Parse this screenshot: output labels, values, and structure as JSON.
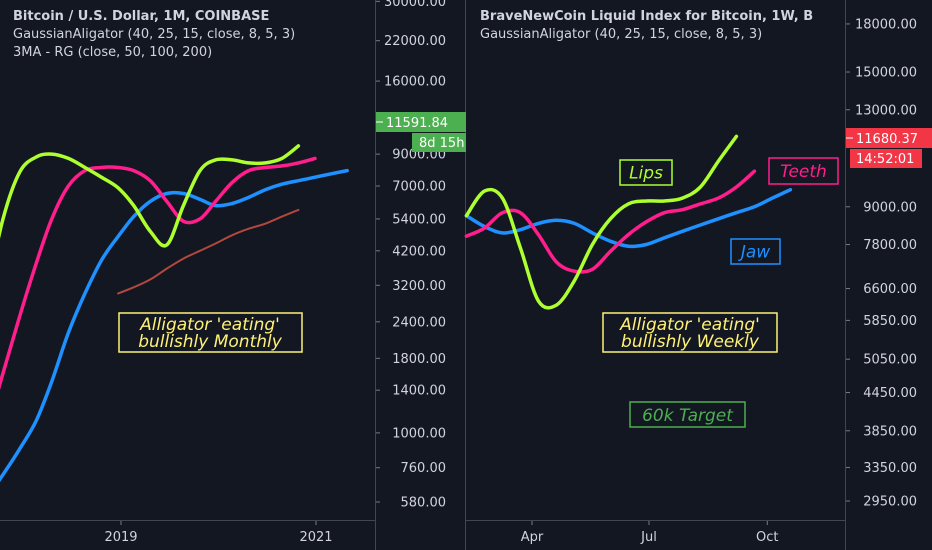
{
  "colors": {
    "background": "#131722",
    "lips": "#ADFF2F",
    "teeth": "#FF1E8C",
    "jaw": "#1E90FF",
    "ma": "#B2473E",
    "green_tag": "#4CAF50",
    "red_tag": "#F23645",
    "note_yellow": "#FFF176",
    "note_green": "#4CAF50"
  },
  "chart_data": [
    {
      "type": "line",
      "title": "Bitcoin / U.S. Dollar, 1M, COINBASE",
      "legend": [
        "GaussianAligator (40, 25, 15, close, 8, 5, 3)",
        "3MA - RG (close, 50, 100, 200)"
      ],
      "x_ticks": [
        "2019",
        "2021"
      ],
      "y_scale": "log",
      "y_ticks": [
        "30000.00",
        "22000.00",
        "16000.00",
        "9000.00",
        "7000.00",
        "5400.00",
        "4200.00",
        "3200.00",
        "2400.00",
        "1800.00",
        "1400.00",
        "1000.00",
        "760.00",
        "580.00"
      ],
      "price_label": "11591.84",
      "countdown_label": "8d 15h",
      "annotation": [
        "Alligator 'eating'",
        "bullishly Monthly"
      ],
      "series": [
        {
          "key": "lips",
          "x": [
            2017.45,
            2017.62,
            2017.79,
            2017.96,
            2018.13,
            2018.29,
            2018.46,
            2018.63,
            2018.8,
            2018.97,
            2019.13,
            2019.3,
            2019.47,
            2019.64,
            2019.81,
            2019.97,
            2020.14,
            2020.31,
            2020.48,
            2020.65,
            2020.82
          ],
          "y": [
            1750,
            3000,
            5400,
            7800,
            8800,
            9000,
            8700,
            8100,
            7500,
            6900,
            6000,
            4900,
            4400,
            6000,
            7900,
            8600,
            8600,
            8400,
            8400,
            8700,
            9600
          ]
        },
        {
          "key": "teeth",
          "x": [
            2017.45,
            2017.62,
            2017.79,
            2017.96,
            2018.13,
            2018.29,
            2018.46,
            2018.63,
            2018.8,
            2018.97,
            2019.13,
            2019.3,
            2019.47,
            2019.64,
            2019.81,
            2019.97,
            2020.14,
            2020.31,
            2020.48,
            2020.65,
            2020.82,
            2020.99
          ],
          "y": [
            860,
            1050,
            1600,
            2500,
            3800,
            5400,
            7000,
            7900,
            8100,
            8100,
            7900,
            7300,
            6200,
            5300,
            5400,
            6200,
            7200,
            7900,
            8100,
            8200,
            8400,
            8700
          ]
        },
        {
          "key": "jaw",
          "x": [
            2017.45,
            2017.62,
            2017.79,
            2017.96,
            2018.13,
            2018.29,
            2018.46,
            2018.63,
            2018.8,
            2018.97,
            2019.13,
            2019.3,
            2019.47,
            2019.64,
            2019.81,
            2019.97,
            2020.14,
            2020.31,
            2020.48,
            2020.65,
            2020.82,
            2020.99,
            2021.15,
            2021.32
          ],
          "y": [
            520,
            600,
            720,
            880,
            1100,
            1500,
            2200,
            3000,
            3900,
            4700,
            5500,
            6200,
            6600,
            6600,
            6300,
            6000,
            6100,
            6400,
            6800,
            7100,
            7300,
            7500,
            7700,
            7900
          ]
        },
        {
          "key": "ma",
          "x": [
            2018.97,
            2019.13,
            2019.3,
            2019.47,
            2019.64,
            2019.81,
            2019.97,
            2020.14,
            2020.31,
            2020.48,
            2020.65,
            2020.82
          ],
          "y": [
            3000,
            3150,
            3350,
            3650,
            3950,
            4200,
            4450,
            4750,
            5000,
            5200,
            5500,
            5800
          ]
        }
      ]
    },
    {
      "type": "line",
      "title": "BraveNewCoin Liquid Index for Bitcoin, 1W, B",
      "legend": [
        "GaussianAligator (40, 25, 15, close, 8, 5, 3)"
      ],
      "x_ticks": [
        "Apr",
        "Jul",
        "Oct"
      ],
      "y_scale": "log",
      "y_ticks": [
        "18000.00",
        "15000.00",
        "13000.00",
        "9000.00",
        "7800.00",
        "6600.00",
        "5850.00",
        "5050.00",
        "4450.00",
        "3850.00",
        "3350.00",
        "2950.00"
      ],
      "price_label": "11680.37",
      "countdown_label": "14:52:01",
      "labels": [
        "Lips",
        "Teeth",
        "Jaw"
      ],
      "annotation": [
        "Alligator 'eating'",
        "bullishly Weekly"
      ],
      "target_label": "60k Target",
      "series": [
        {
          "key": "lips",
          "x": [
            "2020-02-10",
            "2020-02-24",
            "2020-03-09",
            "2020-03-23",
            "2020-04-06",
            "2020-04-20",
            "2020-05-04",
            "2020-05-18",
            "2020-06-01",
            "2020-06-15",
            "2020-06-29",
            "2020-07-13",
            "2020-07-27",
            "2020-08-10",
            "2020-08-24",
            "2020-09-07"
          ],
          "y": [
            8700,
            9550,
            9300,
            7700,
            6300,
            6200,
            6800,
            7800,
            8600,
            9100,
            9200,
            9200,
            9300,
            9700,
            10700,
            11750
          ]
        },
        {
          "key": "teeth",
          "x": [
            "2020-02-10",
            "2020-02-24",
            "2020-03-09",
            "2020-03-23",
            "2020-04-06",
            "2020-04-20",
            "2020-05-04",
            "2020-05-18",
            "2020-06-01",
            "2020-06-15",
            "2020-06-29",
            "2020-07-13",
            "2020-07-27",
            "2020-08-10",
            "2020-08-24",
            "2020-09-07",
            "2020-09-21"
          ],
          "y": [
            8050,
            8300,
            8800,
            8800,
            8100,
            7300,
            7050,
            7100,
            7600,
            8100,
            8500,
            8800,
            8900,
            9100,
            9300,
            9700,
            10300
          ]
        },
        {
          "key": "jaw",
          "x": [
            "2020-02-10",
            "2020-02-24",
            "2020-03-09",
            "2020-03-23",
            "2020-04-06",
            "2020-04-20",
            "2020-05-04",
            "2020-05-18",
            "2020-06-01",
            "2020-06-15",
            "2020-06-29",
            "2020-07-13",
            "2020-07-27",
            "2020-08-10",
            "2020-08-24",
            "2020-09-07",
            "2020-09-21",
            "2020-10-05",
            "2020-10-19"
          ],
          "y": [
            8700,
            8350,
            8150,
            8250,
            8450,
            8550,
            8450,
            8150,
            7900,
            7750,
            7800,
            8000,
            8200,
            8400,
            8600,
            8800,
            9000,
            9300,
            9600
          ]
        }
      ]
    }
  ]
}
